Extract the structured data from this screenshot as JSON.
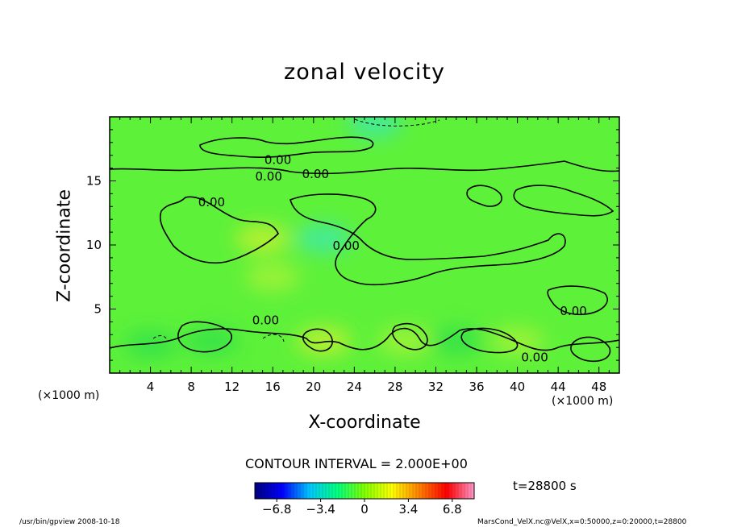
{
  "chart_data": {
    "type": "heatmap",
    "title": "zonal velocity",
    "xlabel": "X-coordinate",
    "ylabel": "Z-coordinate",
    "x_unit_label": "(×1000 m)",
    "x_ticks": [
      4,
      8,
      12,
      16,
      20,
      24,
      28,
      32,
      36,
      40,
      44,
      48
    ],
    "y_ticks": [
      5,
      10,
      15
    ],
    "xlim": [
      0,
      50
    ],
    "ylim": [
      0,
      20
    ],
    "contour_interval_label": "CONTOUR INTERVAL = 2.000E+00",
    "contour_label": "0.00",
    "colorbar": {
      "range": [
        -8.5,
        8.5
      ],
      "ticks": [
        -6.8,
        -3.4,
        0,
        3.4,
        6.8
      ],
      "tick_labels": [
        "−6.8",
        "−3.4",
        "0",
        "3.4",
        "6.8"
      ],
      "colors": [
        "#000080",
        "#0000ff",
        "#00c8ff",
        "#00ff80",
        "#80ff00",
        "#ffff00",
        "#ff8000",
        "#ff0000",
        "#ff99cc"
      ]
    },
    "colormap_field": {
      "note_colors": {
        "background": "#5ef13a",
        "dark": "#30e04a",
        "cyan": "#3ee8b0",
        "yellow": "#c8f030"
      },
      "patches": [
        {
          "x": 4,
          "y": 2.2,
          "value": -1.2
        },
        {
          "x": 10,
          "y": 2.5,
          "value": -0.8
        },
        {
          "x": 15,
          "y": 10.5,
          "value": 1.8
        },
        {
          "x": 21,
          "y": 10.5,
          "value": -1.4
        },
        {
          "x": 21,
          "y": 2.5,
          "value": 1.6
        },
        {
          "x": 29,
          "y": 2.5,
          "value": 1.2
        },
        {
          "x": 34,
          "y": 2.5,
          "value": -1.0
        },
        {
          "x": 40,
          "y": 2.5,
          "value": 1.4
        },
        {
          "x": 26,
          "y": 19.5,
          "value": -1.5
        },
        {
          "x": 16,
          "y": 7.5,
          "value": 1.0
        }
      ]
    },
    "contour_label_points": [
      {
        "x": 16.5,
        "y": 16.6
      },
      {
        "x": 15.6,
        "y": 15.3
      },
      {
        "x": 20.2,
        "y": 15.5
      },
      {
        "x": 10.0,
        "y": 13.3
      },
      {
        "x": 23.2,
        "y": 9.9
      },
      {
        "x": 15.3,
        "y": 4.1
      },
      {
        "x": 45.5,
        "y": 4.8
      },
      {
        "x": 41.7,
        "y": 1.2
      }
    ],
    "time_label": "t=28800 s"
  },
  "footer": {
    "left": "/usr/bin/gpview   2008-10-18",
    "right": "MarsCond_VelX.nc@VelX,x=0:50000,z=0:20000,t=28800"
  }
}
